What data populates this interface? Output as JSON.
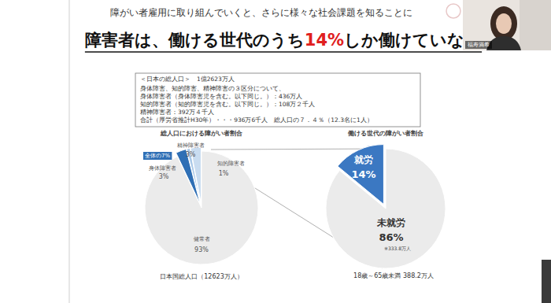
{
  "slide": {
    "header": "障がい者雇用に取り組んでいくと、さらに様々な社会課題を知ることに",
    "title_parts": [
      "障害者は、働ける世代のうち",
      "14%",
      "しか働けていない"
    ],
    "info_box": [
      "＜日本の総人口＞　1億2623万人",
      "身体障害、知的障害、精神障害の３区分について、",
      "身体障害者（身体障害児を含む。以下同じ。）：436万人",
      "知的障害者（知的障害児を含む。以下同じ。）：108万２千人",
      "精神障害者：392万４千人",
      "合計（厚労省推計H30年）・・・936万6千人　総人口の７．４％（12.3名に1人）"
    ]
  },
  "video": {
    "participant_name": "福寿満希"
  },
  "chart_data": [
    {
      "type": "pie",
      "title": "総人口における障がい者割合",
      "categories": [
        "身体障害者",
        "知的障害者",
        "精神障害者",
        "健常者"
      ],
      "values": [
        3,
        1,
        3,
        93
      ],
      "value_labels": [
        "3%",
        "1%",
        "3%",
        "93%"
      ],
      "colors": [
        "#2f6fb5",
        "#a9c8e8",
        "#c9dcf0",
        "#ebebeb"
      ],
      "data_labels": true,
      "annotations": [
        "全体の7%",
        "日本国総人口（12623万人）"
      ]
    },
    {
      "type": "pie",
      "title": "働ける世代の障がい者割合",
      "categories": [
        "就労",
        "未就労"
      ],
      "values": [
        14,
        86
      ],
      "value_labels": [
        "14%",
        "86%"
      ],
      "colors": [
        "#3b78c2",
        "#ebebeb"
      ],
      "data_labels": true,
      "annotations": [
        "※333.8万人",
        "18歳～65歳未満 388.2万人"
      ]
    }
  ]
}
